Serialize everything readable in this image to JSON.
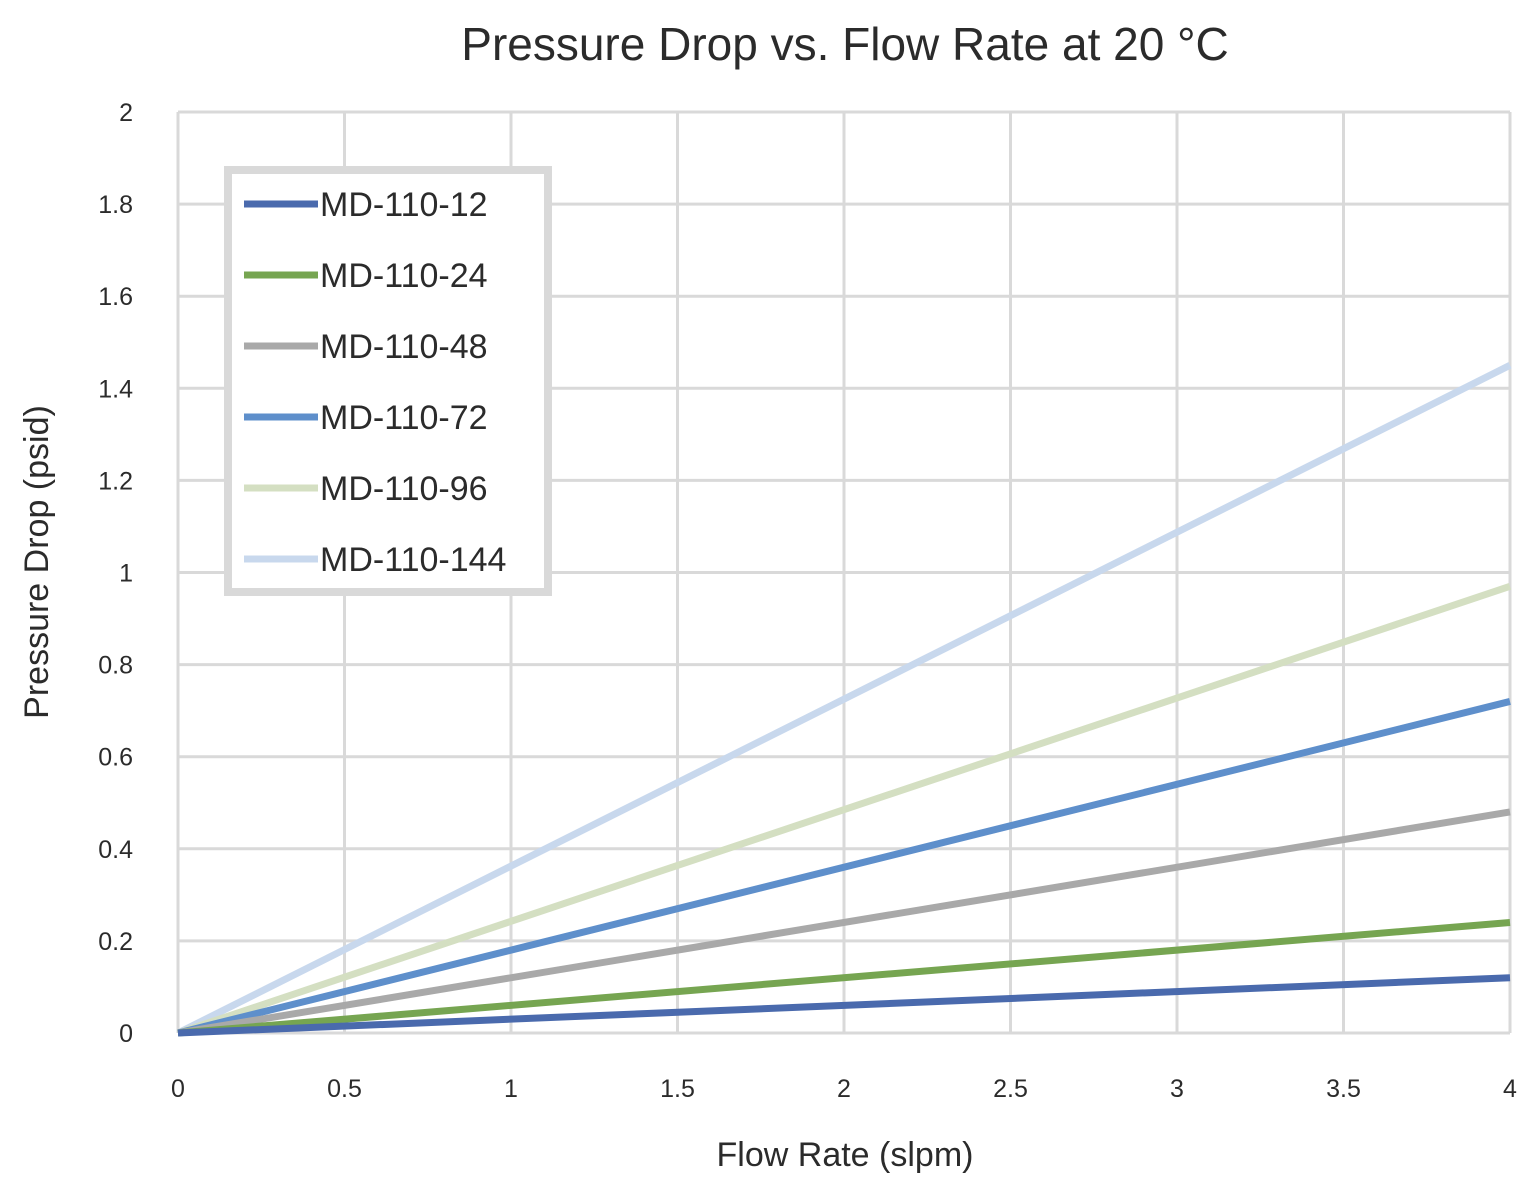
{
  "chart_data": {
    "type": "line",
    "title": "Pressure Drop vs. Flow Rate at 20 °C",
    "xlabel": "Flow Rate (slpm)",
    "ylabel": "Pressure Drop (psid)",
    "xlim": [
      0,
      4
    ],
    "ylim": [
      0,
      2
    ],
    "grid": true,
    "legend_position": "top-left",
    "x_ticks": [
      "0",
      "0.5",
      "1",
      "1.5",
      "2",
      "2.5",
      "3",
      "3.5",
      "4"
    ],
    "y_ticks": [
      "0",
      "0.2",
      "0.4",
      "0.6",
      "0.8",
      "1",
      "1.2",
      "1.4",
      "1.6",
      "1.8",
      "2"
    ],
    "x": [
      0,
      4
    ],
    "series": [
      {
        "name": "MD-110-12",
        "color": "#4a6aad",
        "values": [
          0,
          0.12
        ]
      },
      {
        "name": "MD-110-24",
        "color": "#76a551",
        "values": [
          0,
          0.24
        ]
      },
      {
        "name": "MD-110-48",
        "color": "#a9a9a9",
        "values": [
          0,
          0.48
        ]
      },
      {
        "name": "MD-110-72",
        "color": "#5e8fcb",
        "values": [
          0,
          0.72
        ]
      },
      {
        "name": "MD-110-96",
        "color": "#d4dfc2",
        "values": [
          0,
          0.97
        ]
      },
      {
        "name": "MD-110-144",
        "color": "#c8d8ed",
        "values": [
          0,
          1.45
        ]
      }
    ]
  }
}
